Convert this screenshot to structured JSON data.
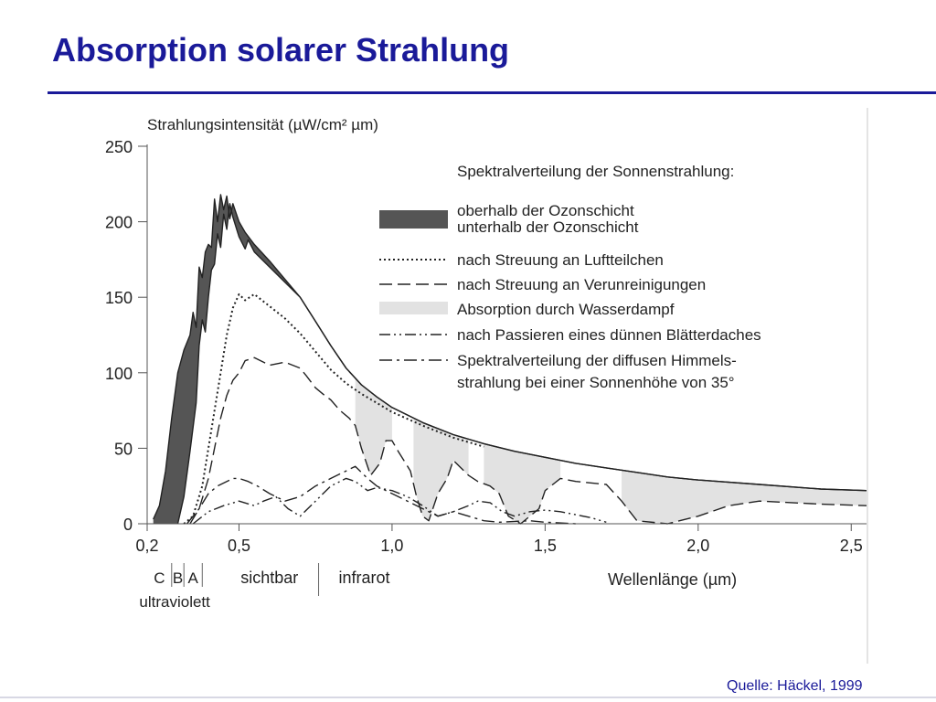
{
  "slide": {
    "title": "Absorption solarer Strahlung",
    "source": "Quelle: Häckel, 1999"
  },
  "colors": {
    "title": "#1a1a99",
    "ink": "#222222",
    "ozone_fill": "#555555",
    "water_fill": "#e2e2e2"
  },
  "chart_data": {
    "type": "line",
    "ylabel": "Strahlungsintensität (µW/cm² µm)",
    "xlabel": "Wellenlänge (µm)",
    "xlim": [
      0.2,
      2.55
    ],
    "ylim": [
      0,
      250
    ],
    "x_ticks": [
      {
        "value": 0.2,
        "label": "0,2"
      },
      {
        "value": 0.5,
        "label": "0,5"
      },
      {
        "value": 1.0,
        "label": "1,0"
      },
      {
        "value": 1.5,
        "label": "1,5"
      },
      {
        "value": 2.0,
        "label": "2,0"
      },
      {
        "value": 2.5,
        "label": "2,5"
      }
    ],
    "y_ticks": [
      {
        "value": 0,
        "label": "0"
      },
      {
        "value": 50,
        "label": "50"
      },
      {
        "value": 100,
        "label": "100"
      },
      {
        "value": 150,
        "label": "150"
      },
      {
        "value": 200,
        "label": "200"
      },
      {
        "value": 250,
        "label": "250"
      }
    ],
    "grid": false,
    "legend_title": "Spektralverteilung der Sonnenstrahlung:",
    "legend_position": "top-right",
    "regions": [
      {
        "name": "C",
        "from": 0.2,
        "to": 0.28
      },
      {
        "name": "B",
        "from": 0.28,
        "to": 0.32
      },
      {
        "name": "A",
        "from": 0.32,
        "to": 0.38
      },
      {
        "name": "sichtbar",
        "from": 0.38,
        "to": 0.76
      },
      {
        "name": "infrarot",
        "from": 0.76,
        "to": 2.55
      }
    ],
    "region_group_label": "ultraviolett",
    "series": [
      {
        "name": "oberhalb der Ozonschicht",
        "style": "solid",
        "points": [
          [
            0.22,
            3
          ],
          [
            0.24,
            12
          ],
          [
            0.26,
            35
          ],
          [
            0.28,
            70
          ],
          [
            0.3,
            100
          ],
          [
            0.32,
            115
          ],
          [
            0.34,
            125
          ],
          [
            0.35,
            140
          ],
          [
            0.36,
            130
          ],
          [
            0.37,
            170
          ],
          [
            0.38,
            163
          ],
          [
            0.39,
            180
          ],
          [
            0.4,
            185
          ],
          [
            0.41,
            183
          ],
          [
            0.42,
            215
          ],
          [
            0.43,
            200
          ],
          [
            0.44,
            218
          ],
          [
            0.45,
            208
          ],
          [
            0.46,
            217
          ],
          [
            0.47,
            202
          ],
          [
            0.48,
            212
          ],
          [
            0.5,
            200
          ],
          [
            0.52,
            193
          ],
          [
            0.55,
            185
          ],
          [
            0.6,
            174
          ],
          [
            0.65,
            162
          ],
          [
            0.7,
            150
          ],
          [
            0.75,
            134
          ],
          [
            0.8,
            118
          ],
          [
            0.85,
            103
          ],
          [
            0.9,
            92
          ],
          [
            0.95,
            84
          ],
          [
            1.0,
            77
          ],
          [
            1.1,
            67
          ],
          [
            1.2,
            59
          ],
          [
            1.3,
            53
          ],
          [
            1.4,
            48
          ],
          [
            1.5,
            44
          ],
          [
            1.6,
            40
          ],
          [
            1.7,
            37
          ],
          [
            1.8,
            34
          ],
          [
            1.9,
            31
          ],
          [
            2.0,
            29
          ],
          [
            2.2,
            26
          ],
          [
            2.4,
            23
          ],
          [
            2.55,
            22
          ]
        ]
      },
      {
        "name": "unterhalb der Ozonschicht",
        "style": "solid",
        "points": [
          [
            0.3,
            0
          ],
          [
            0.32,
            18
          ],
          [
            0.34,
            48
          ],
          [
            0.36,
            80
          ],
          [
            0.37,
            118
          ],
          [
            0.38,
            135
          ],
          [
            0.39,
            127
          ],
          [
            0.4,
            150
          ],
          [
            0.41,
            168
          ],
          [
            0.42,
            172
          ],
          [
            0.43,
            192
          ],
          [
            0.44,
            183
          ],
          [
            0.45,
            205
          ],
          [
            0.46,
            195
          ],
          [
            0.47,
            212
          ],
          [
            0.48,
            203
          ],
          [
            0.5,
            190
          ],
          [
            0.52,
            182
          ],
          [
            0.53,
            188
          ],
          [
            0.55,
            180
          ],
          [
            0.6,
            170
          ],
          [
            0.65,
            160
          ],
          [
            0.7,
            150
          ],
          [
            0.75,
            134
          ],
          [
            0.8,
            118
          ],
          [
            0.85,
            103
          ],
          [
            0.9,
            92
          ],
          [
            0.95,
            84
          ],
          [
            1.0,
            77
          ],
          [
            1.1,
            67
          ],
          [
            1.2,
            59
          ],
          [
            1.3,
            53
          ],
          [
            1.4,
            48
          ],
          [
            1.5,
            44
          ],
          [
            1.6,
            40
          ],
          [
            1.7,
            37
          ],
          [
            1.8,
            34
          ],
          [
            1.9,
            31
          ],
          [
            2.0,
            29
          ],
          [
            2.2,
            26
          ],
          [
            2.4,
            23
          ],
          [
            2.55,
            22
          ]
        ]
      },
      {
        "name": "nach Streuung an Luftteilchen",
        "style": "dotted",
        "points": [
          [
            0.32,
            0
          ],
          [
            0.35,
            5
          ],
          [
            0.38,
            25
          ],
          [
            0.4,
            50
          ],
          [
            0.42,
            75
          ],
          [
            0.44,
            100
          ],
          [
            0.46,
            125
          ],
          [
            0.48,
            143
          ],
          [
            0.5,
            152
          ],
          [
            0.52,
            148
          ],
          [
            0.55,
            152
          ],
          [
            0.6,
            144
          ],
          [
            0.65,
            136
          ],
          [
            0.7,
            126
          ],
          [
            0.75,
            114
          ],
          [
            0.8,
            102
          ],
          [
            0.85,
            93
          ],
          [
            0.9,
            86
          ],
          [
            0.95,
            80
          ],
          [
            1.0,
            74
          ],
          [
            1.1,
            65
          ],
          [
            1.2,
            57
          ],
          [
            1.3,
            51
          ]
        ]
      },
      {
        "name": "nach Streuung an Verunreinigungen",
        "style": "dashed",
        "points": [
          [
            0.34,
            0
          ],
          [
            0.37,
            10
          ],
          [
            0.4,
            30
          ],
          [
            0.42,
            50
          ],
          [
            0.44,
            70
          ],
          [
            0.46,
            85
          ],
          [
            0.48,
            95
          ],
          [
            0.5,
            100
          ],
          [
            0.52,
            108
          ],
          [
            0.55,
            110
          ],
          [
            0.6,
            105
          ],
          [
            0.65,
            107
          ],
          [
            0.7,
            103
          ],
          [
            0.72,
            98
          ],
          [
            0.75,
            90
          ],
          [
            0.78,
            85
          ],
          [
            0.8,
            82
          ],
          [
            0.83,
            75
          ],
          [
            0.86,
            70
          ],
          [
            0.88,
            65
          ],
          [
            0.9,
            50
          ],
          [
            0.93,
            32
          ],
          [
            0.96,
            40
          ],
          [
            0.98,
            55
          ],
          [
            1.0,
            55
          ],
          [
            1.02,
            48
          ],
          [
            1.06,
            35
          ],
          [
            1.08,
            18
          ],
          [
            1.1,
            5
          ],
          [
            1.12,
            2
          ],
          [
            1.15,
            20
          ],
          [
            1.18,
            30
          ],
          [
            1.2,
            42
          ],
          [
            1.22,
            38
          ],
          [
            1.25,
            32
          ],
          [
            1.28,
            28
          ],
          [
            1.32,
            25
          ],
          [
            1.35,
            20
          ],
          [
            1.38,
            5
          ],
          [
            1.42,
            0
          ],
          [
            1.48,
            10
          ],
          [
            1.5,
            22
          ],
          [
            1.55,
            30
          ],
          [
            1.6,
            28
          ],
          [
            1.7,
            26
          ],
          [
            1.75,
            15
          ],
          [
            1.8,
            2
          ],
          [
            1.9,
            0
          ],
          [
            2.0,
            5
          ],
          [
            2.1,
            12
          ],
          [
            2.2,
            15
          ],
          [
            2.4,
            13
          ],
          [
            2.55,
            12
          ]
        ]
      },
      {
        "name": "Absorption durch Wasserdampf",
        "style": "shaded",
        "bands": [
          [
            0.88,
            1.0
          ],
          [
            1.07,
            1.25
          ],
          [
            1.3,
            1.55
          ],
          [
            1.75,
            2.55
          ]
        ]
      },
      {
        "name": "nach Passieren eines dünnen Blätterdaches",
        "style": "dash-dot-dot",
        "points": [
          [
            0.35,
            0
          ],
          [
            0.4,
            8
          ],
          [
            0.45,
            12
          ],
          [
            0.5,
            15
          ],
          [
            0.55,
            12
          ],
          [
            0.58,
            15
          ],
          [
            0.62,
            18
          ],
          [
            0.66,
            10
          ],
          [
            0.7,
            5
          ],
          [
            0.75,
            15
          ],
          [
            0.8,
            25
          ],
          [
            0.85,
            30
          ],
          [
            0.88,
            28
          ],
          [
            0.92,
            22
          ],
          [
            0.95,
            24
          ],
          [
            1.0,
            22
          ],
          [
            1.05,
            18
          ],
          [
            1.1,
            12
          ],
          [
            1.15,
            5
          ],
          [
            1.2,
            8
          ],
          [
            1.25,
            12
          ],
          [
            1.28,
            15
          ],
          [
            1.32,
            14
          ],
          [
            1.36,
            8
          ],
          [
            1.4,
            5
          ],
          [
            1.45,
            8
          ],
          [
            1.5,
            9
          ],
          [
            1.55,
            8
          ],
          [
            1.6,
            6
          ],
          [
            1.65,
            4
          ],
          [
            1.7,
            1
          ]
        ]
      },
      {
        "name": "Spektralverteilung der diffusen Himmelsstrahlung bei einer Sonnenhöhe von 35°",
        "style": "dash-dot",
        "points": [
          [
            0.33,
            0
          ],
          [
            0.37,
            10
          ],
          [
            0.4,
            20
          ],
          [
            0.43,
            25
          ],
          [
            0.46,
            28
          ],
          [
            0.48,
            30
          ],
          [
            0.5,
            30
          ],
          [
            0.53,
            28
          ],
          [
            0.56,
            25
          ],
          [
            0.6,
            20
          ],
          [
            0.65,
            15
          ],
          [
            0.7,
            18
          ],
          [
            0.75,
            25
          ],
          [
            0.8,
            30
          ],
          [
            0.85,
            35
          ],
          [
            0.88,
            38
          ],
          [
            0.92,
            30
          ],
          [
            0.95,
            25
          ],
          [
            1.0,
            20
          ],
          [
            1.05,
            15
          ],
          [
            1.1,
            10
          ],
          [
            1.15,
            5
          ],
          [
            1.2,
            8
          ],
          [
            1.25,
            5
          ],
          [
            1.3,
            2
          ],
          [
            1.35,
            1
          ],
          [
            1.45,
            2
          ],
          [
            1.5,
            1
          ],
          [
            1.6,
            0
          ]
        ]
      }
    ],
    "legend": [
      {
        "key": "ozone",
        "label": "oberhalb der Ozonschicht"
      },
      {
        "key": "ozone",
        "label": "unterhalb der Ozonschicht"
      },
      {
        "key": "dotted",
        "label": "nach Streuung an Luftteilchen"
      },
      {
        "key": "dashed",
        "label": "nach Streuung an Verunreinigungen"
      },
      {
        "key": "shaded",
        "label": "Absorption durch Wasserdampf"
      },
      {
        "key": "dash-dot-dot",
        "label": "nach Passieren eines dünnen Blätterdaches"
      },
      {
        "key": "dash-dot",
        "label": "Spektralverteilung der diffusen Himmels-"
      },
      {
        "key": "none",
        "label": "strahlung bei einer Sonnenhöhe von 35°"
      }
    ]
  }
}
